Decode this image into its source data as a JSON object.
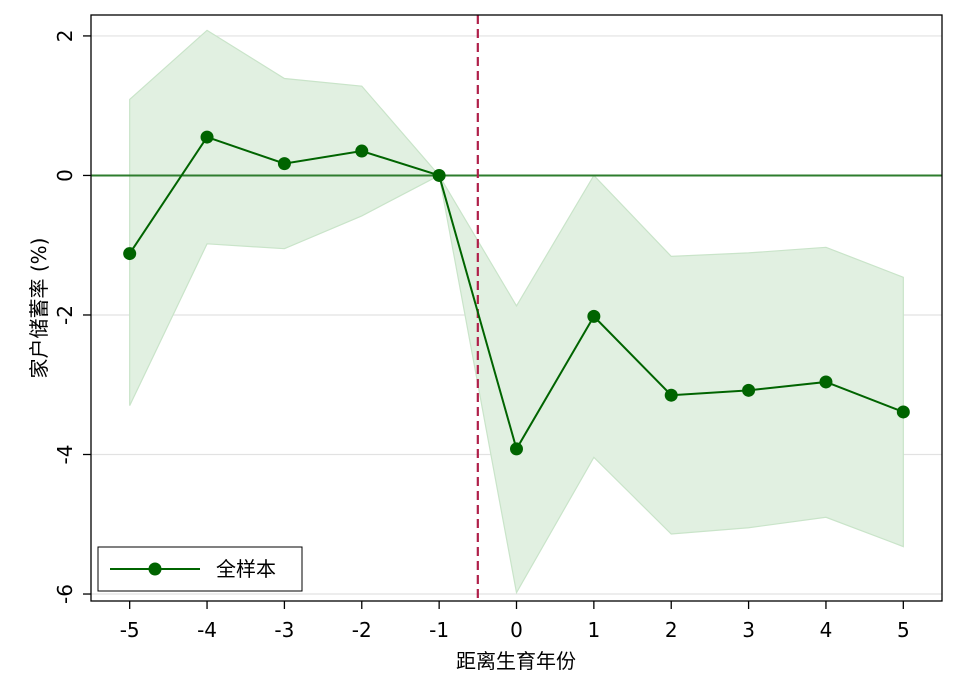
{
  "chart_data": {
    "type": "line",
    "title": "",
    "xlabel": "距离生育年份",
    "ylabel": "家户储蓄率 (%)",
    "x": [
      -5,
      -4,
      -3,
      -2,
      -1,
      0,
      1,
      2,
      3,
      4,
      5
    ],
    "x_ticks": [
      "-5",
      "-4",
      "-3",
      "-2",
      "-1",
      "0",
      "1",
      "2",
      "3",
      "4",
      "5"
    ],
    "y_ticks": [
      "2",
      "0",
      "-2",
      "-4",
      "-6"
    ],
    "xlim": [
      -5.5,
      5.5
    ],
    "ylim": [
      -6.1,
      2.3
    ],
    "series": [
      {
        "name": "全样本",
        "values": [
          -1.12,
          0.55,
          0.17,
          0.35,
          0.0,
          -3.92,
          -2.02,
          -3.15,
          -3.08,
          -2.96,
          -3.39
        ],
        "ci_upper": [
          1.09,
          2.08,
          1.39,
          1.28,
          0.0,
          -1.87,
          0.0,
          -1.16,
          -1.11,
          -1.03,
          -1.46
        ],
        "ci_lower": [
          -3.3,
          -0.98,
          -1.05,
          -0.58,
          0.0,
          -5.98,
          -4.04,
          -5.14,
          -5.05,
          -4.9,
          -5.32
        ]
      }
    ],
    "reference_lines": {
      "y": 0,
      "x": -0.5
    },
    "grid": true,
    "legend": "bottom-left",
    "colors": {
      "line": "#006400",
      "band": "#e1f0e1",
      "band_edge": "#c9e4c9",
      "zero_line": "#2e7d2e",
      "vline": "#b0204a",
      "grid": "#e2e2e2"
    }
  }
}
